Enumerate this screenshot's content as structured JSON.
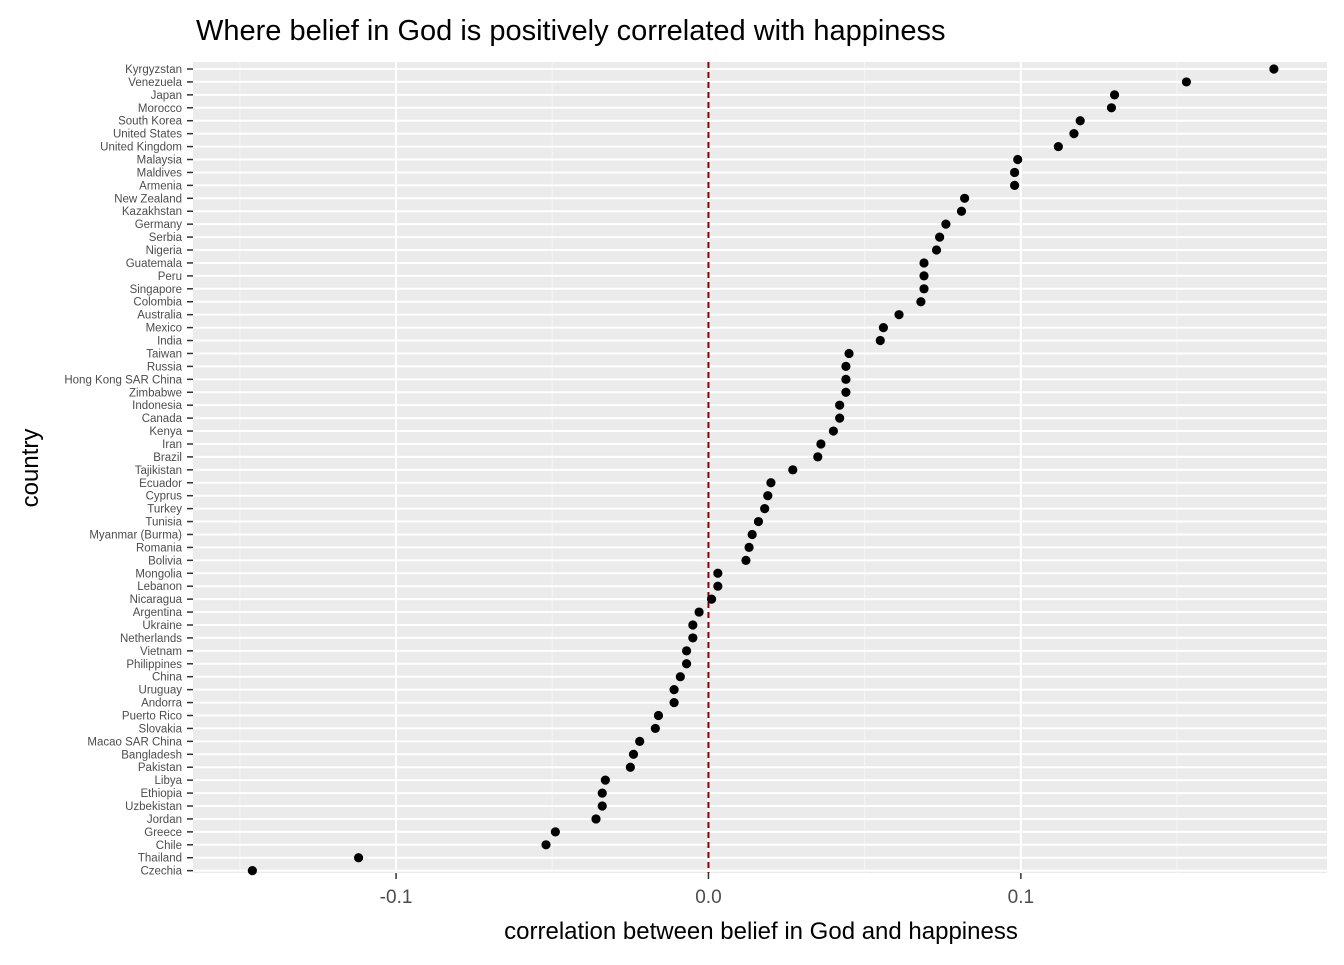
{
  "chart_data": {
    "type": "scatter",
    "title": "Where belief in God is positively correlated with happiness",
    "xlabel": "correlation between belief in God and happiness",
    "ylabel": "country",
    "xlim": [
      -0.165,
      0.198
    ],
    "x_ticks": [
      {
        "value": -0.1,
        "label": "-0.1"
      },
      {
        "value": 0.0,
        "label": "0.0"
      },
      {
        "value": 0.1,
        "label": "0.1"
      }
    ],
    "reference_line": {
      "x": 0.0,
      "color": "#8b0000",
      "style": "dashed"
    },
    "grid": true,
    "panel_background": "#ebebeb",
    "point_color": "#000000",
    "categories": [
      "Kyrgyzstan",
      "Venezuela",
      "Japan",
      "Morocco",
      "South Korea",
      "United States",
      "United Kingdom",
      "Malaysia",
      "Maldives",
      "Armenia",
      "New Zealand",
      "Kazakhstan",
      "Germany",
      "Serbia",
      "Nigeria",
      "Guatemala",
      "Peru",
      "Singapore",
      "Colombia",
      "Australia",
      "Mexico",
      "India",
      "Taiwan",
      "Russia",
      "Hong Kong SAR China",
      "Zimbabwe",
      "Indonesia",
      "Canada",
      "Kenya",
      "Iran",
      "Brazil",
      "Tajikistan",
      "Ecuador",
      "Cyprus",
      "Turkey",
      "Tunisia",
      "Myanmar (Burma)",
      "Romania",
      "Bolivia",
      "Mongolia",
      "Lebanon",
      "Nicaragua",
      "Argentina",
      "Ukraine",
      "Netherlands",
      "Vietnam",
      "Philippines",
      "China",
      "Uruguay",
      "Andorra",
      "Puerto Rico",
      "Slovakia",
      "Macao SAR China",
      "Bangladesh",
      "Pakistan",
      "Libya",
      "Ethiopia",
      "Uzbekistan",
      "Jordan",
      "Greece",
      "Chile",
      "Thailand",
      "Czechia"
    ],
    "values": [
      0.181,
      0.153,
      0.13,
      0.129,
      0.119,
      0.117,
      0.112,
      0.099,
      0.098,
      0.098,
      0.082,
      0.081,
      0.076,
      0.074,
      0.073,
      0.069,
      0.069,
      0.069,
      0.068,
      0.061,
      0.056,
      0.055,
      0.045,
      0.044,
      0.044,
      0.044,
      0.042,
      0.042,
      0.04,
      0.036,
      0.035,
      0.027,
      0.02,
      0.019,
      0.018,
      0.016,
      0.014,
      0.013,
      0.012,
      0.003,
      0.003,
      0.001,
      -0.003,
      -0.005,
      -0.005,
      -0.007,
      -0.007,
      -0.009,
      -0.011,
      -0.011,
      -0.016,
      -0.017,
      -0.022,
      -0.024,
      -0.025,
      -0.033,
      -0.034,
      -0.034,
      -0.036,
      -0.049,
      -0.052,
      -0.112,
      -0.146
    ]
  }
}
